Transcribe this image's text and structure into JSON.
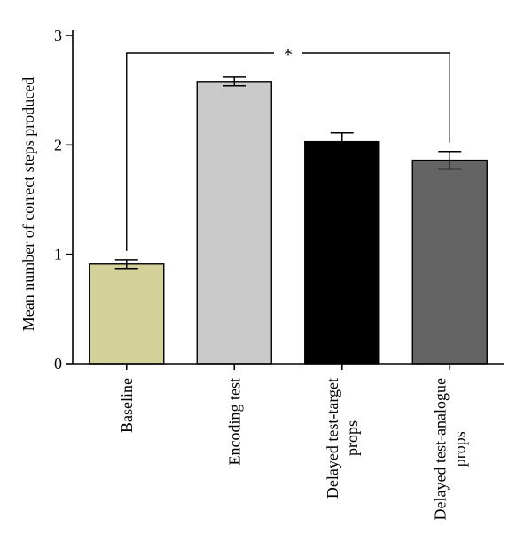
{
  "chart_data": {
    "type": "bar",
    "categories": [
      [
        "Baseline"
      ],
      [
        "Encoding test"
      ],
      [
        "Delayed test-target",
        "props"
      ],
      [
        "Delayed test-analogue",
        "props"
      ]
    ],
    "values": [
      0.91,
      2.58,
      2.03,
      1.86
    ],
    "errors": [
      0.04,
      0.04,
      0.08,
      0.08
    ],
    "colors": [
      "#d4d19a",
      "#cacaca",
      "#000000",
      "#646464"
    ],
    "ylabel": "Mean number of correct steps produced",
    "ylim": [
      0,
      3
    ],
    "yticks": [
      "0",
      "1",
      "2",
      "3"
    ],
    "significance": {
      "from": 0,
      "to": 3,
      "label": "*"
    },
    "grid": false,
    "legend": "none"
  }
}
